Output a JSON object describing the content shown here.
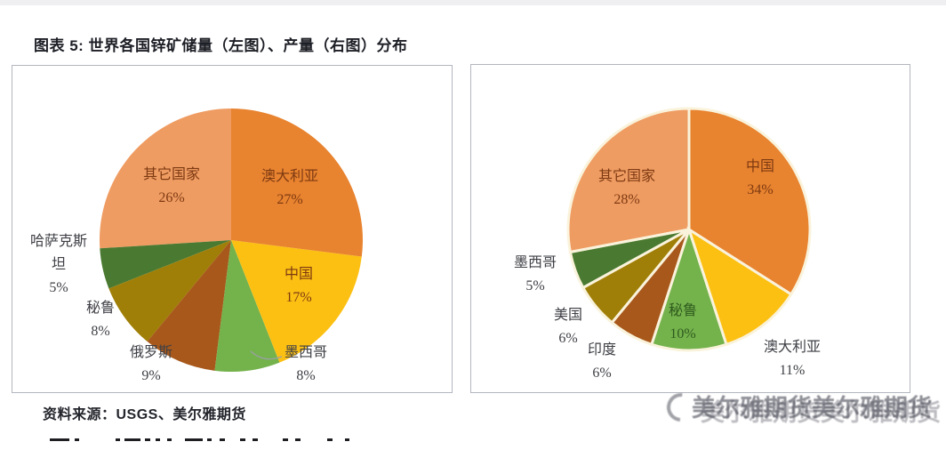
{
  "page": {
    "title": "图表 5: 世界各国锌矿储量（左图）、产量（右图）分布",
    "source": "资料来源：USGS、美尔雅期货",
    "watermark": "美尔雅期货美尔雅期货"
  },
  "chart_data": [
    {
      "type": "pie",
      "position": "left",
      "title": "世界各国锌矿储量分布",
      "unit": "percent",
      "start_angle_deg": 0,
      "direction": "clockwise",
      "exploded": false,
      "legend": "none",
      "slices": [
        {
          "label": "澳大利亚",
          "value": 27,
          "pct": "27%",
          "color": "#E8832F",
          "label_placement": "inside"
        },
        {
          "label": "中国",
          "value": 17,
          "pct": "17%",
          "color": "#FCC013",
          "label_placement": "inside"
        },
        {
          "label": "墨西哥",
          "value": 8,
          "pct": "8%",
          "color": "#74B24C",
          "label_placement": "outside"
        },
        {
          "label": "俄罗斯",
          "value": 9,
          "pct": "9%",
          "color": "#A8581B",
          "label_placement": "outside"
        },
        {
          "label": "秘鲁",
          "value": 8,
          "pct": "8%",
          "color": "#A07F08",
          "label_placement": "outside"
        },
        {
          "label": "哈萨克斯坦",
          "value": 5,
          "pct": "5%",
          "color": "#4A7A31",
          "label_placement": "outside"
        },
        {
          "label": "其它国家",
          "value": 26,
          "pct": "26%",
          "color": "#EF9C62",
          "label_placement": "inside"
        }
      ]
    },
    {
      "type": "pie",
      "position": "right",
      "title": "世界各国锌矿产量分布",
      "unit": "percent",
      "start_angle_deg": 0,
      "direction": "clockwise",
      "exploded": true,
      "legend": "none",
      "slices": [
        {
          "label": "中国",
          "value": 34,
          "pct": "34%",
          "color": "#E8832F",
          "label_placement": "inside"
        },
        {
          "label": "澳大利亚",
          "value": 11,
          "pct": "11%",
          "color": "#FCC013",
          "label_placement": "outside"
        },
        {
          "label": "秘鲁",
          "value": 10,
          "pct": "10%",
          "color": "#74B24C",
          "label_placement": "inside"
        },
        {
          "label": "印度",
          "value": 6,
          "pct": "6%",
          "color": "#A8581B",
          "label_placement": "outside"
        },
        {
          "label": "美国",
          "value": 6,
          "pct": "6%",
          "color": "#A07F08",
          "label_placement": "outside"
        },
        {
          "label": "墨西哥",
          "value": 5,
          "pct": "5%",
          "color": "#4A7A31",
          "label_placement": "outside"
        },
        {
          "label": "其它国家",
          "value": 28,
          "pct": "28%",
          "color": "#EF9C62",
          "label_placement": "inside"
        }
      ]
    }
  ]
}
